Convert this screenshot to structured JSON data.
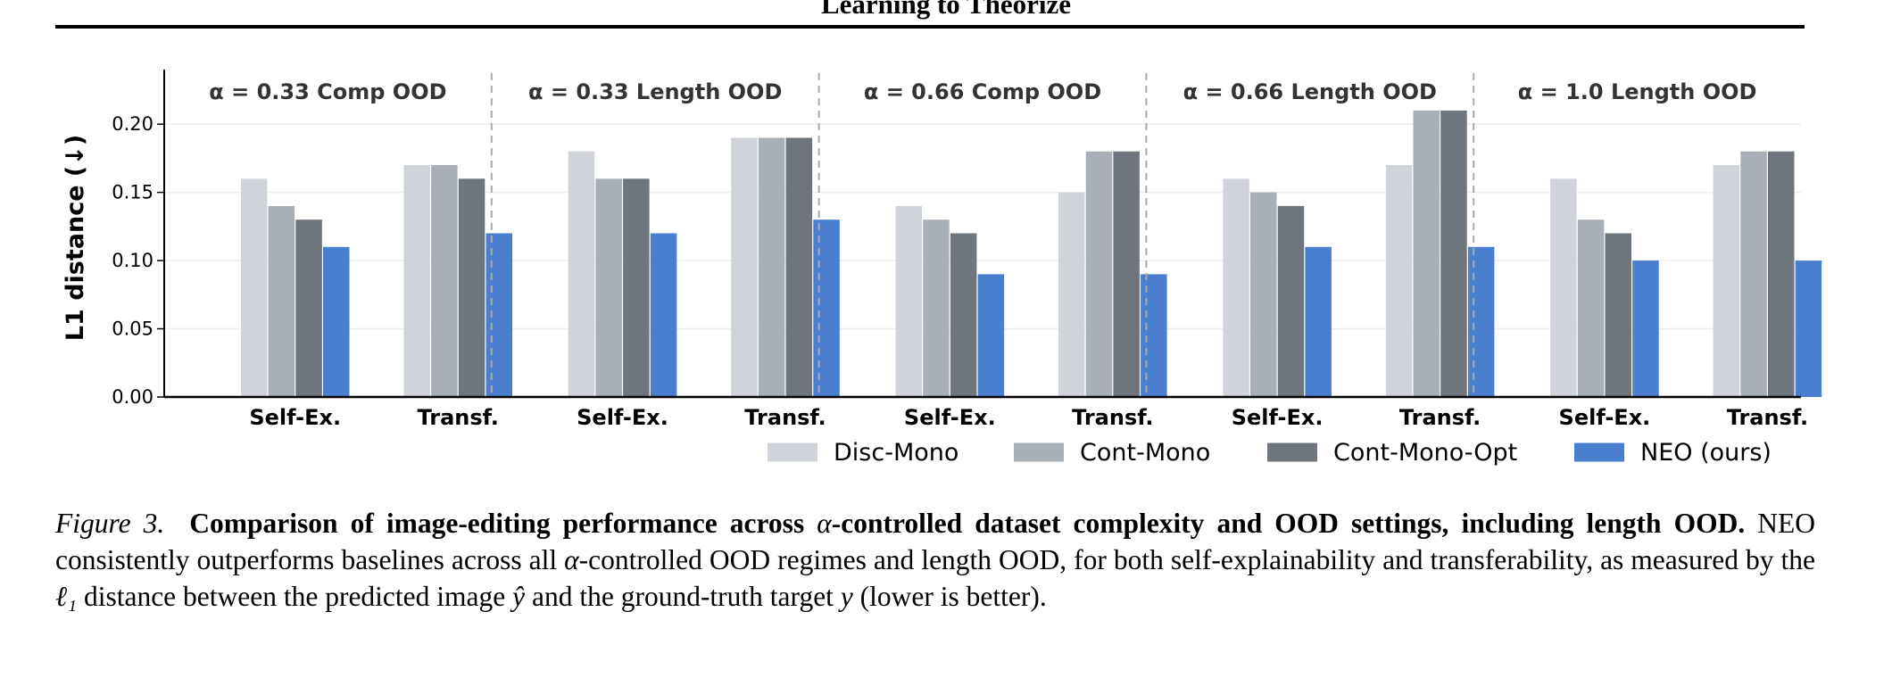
{
  "header": {
    "title": "Learning to Theorize"
  },
  "chart_data": {
    "type": "bar",
    "ylabel": "L1 distance (↓)",
    "ylim": [
      0,
      0.24
    ],
    "yticks": [
      0.0,
      0.05,
      0.1,
      0.15,
      0.2
    ],
    "ytick_labels": [
      "0.00",
      "0.05",
      "0.10",
      "0.15",
      "0.20"
    ],
    "grid": "horizontal",
    "legend_position": "bottom-right",
    "series": [
      {
        "name": "Disc-Mono",
        "color": "#d0d4da"
      },
      {
        "name": "Cont-Mono",
        "color": "#a9afb7"
      },
      {
        "name": "Cont-Mono-Opt",
        "color": "#6e757d"
      },
      {
        "name": "NEO (ours)",
        "color": "#4a7fcf"
      }
    ],
    "panels": [
      {
        "title": "α = 0.33 Comp OOD",
        "groups": [
          {
            "label": "Self-Ex.",
            "values": [
              0.16,
              0.14,
              0.13,
              0.11
            ]
          },
          {
            "label": "Transf.",
            "values": [
              0.17,
              0.17,
              0.16,
              0.12
            ]
          }
        ]
      },
      {
        "title": "α = 0.33 Length OOD",
        "groups": [
          {
            "label": "Self-Ex.",
            "values": [
              0.18,
              0.16,
              0.16,
              0.12
            ]
          },
          {
            "label": "Transf.",
            "values": [
              0.19,
              0.19,
              0.19,
              0.13
            ]
          }
        ]
      },
      {
        "title": "α = 0.66 Comp OOD",
        "groups": [
          {
            "label": "Self-Ex.",
            "values": [
              0.14,
              0.13,
              0.12,
              0.09
            ]
          },
          {
            "label": "Transf.",
            "values": [
              0.15,
              0.18,
              0.18,
              0.09
            ]
          }
        ]
      },
      {
        "title": "α = 0.66 Length OOD",
        "groups": [
          {
            "label": "Self-Ex.",
            "values": [
              0.16,
              0.15,
              0.14,
              0.11
            ]
          },
          {
            "label": "Transf.",
            "values": [
              0.17,
              0.21,
              0.21,
              0.11
            ]
          }
        ]
      },
      {
        "title": "α = 1.0 Length OOD",
        "groups": [
          {
            "label": "Self-Ex.",
            "values": [
              0.16,
              0.13,
              0.12,
              0.1
            ]
          },
          {
            "label": "Transf.",
            "values": [
              0.17,
              0.18,
              0.18,
              0.1
            ]
          }
        ]
      }
    ]
  },
  "caption": {
    "figure_label": "Figure 3.",
    "bold_a": "Comparison of image-editing performance across ",
    "alpha": "α",
    "bold_b": "-controlled dataset complexity and OOD settings, including length OOD.",
    "body_a": " NEO consistently outperforms baselines across all ",
    "body_b": "-controlled OOD regimes and length OOD, for both self-explainability and transferability, as measured by the ",
    "l1": "ℓ₁",
    "body_c": " distance between the predicted image ",
    "yhat": "ŷ",
    "body_d": " and the ground-truth target ",
    "y": "y",
    "body_e": " (lower is better)."
  }
}
